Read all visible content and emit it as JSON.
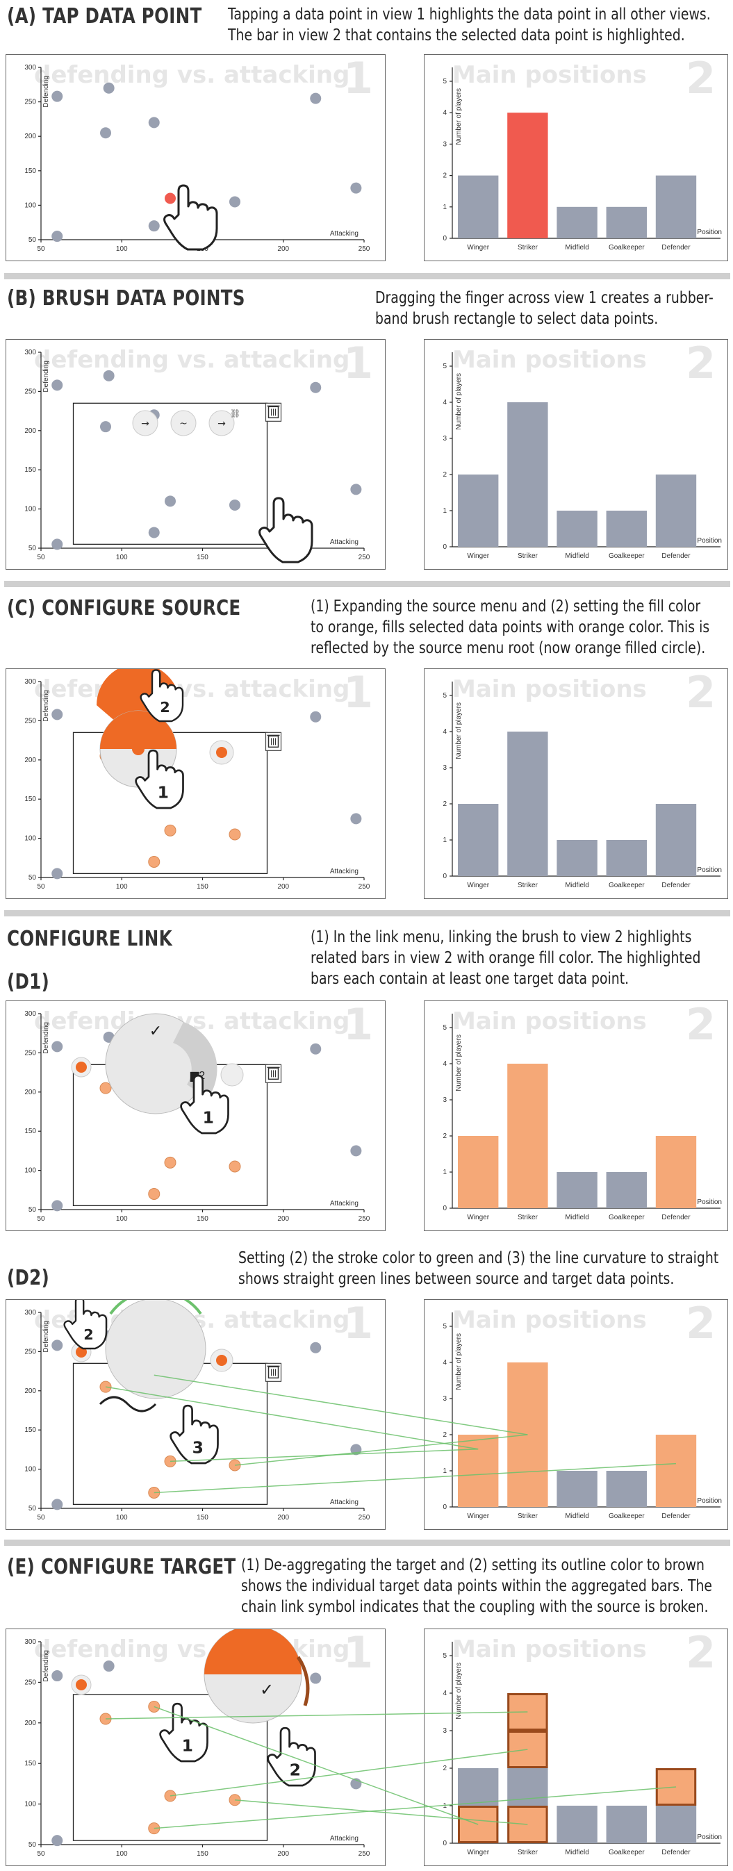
{
  "sections": [
    {
      "id": "a",
      "title": "(A) TAP DATA POINT",
      "desc": [
        "Tapping a data point in view 1 highlights the data point in all other views.",
        "The bar in view 2 that contains the selected data point is highlighted."
      ]
    },
    {
      "id": "b",
      "title": "(B) BRUSH DATA POINTS",
      "desc": [
        "Dragging the finger across view 1 creates a rubber-",
        "band brush rectangle to select data points."
      ]
    },
    {
      "id": "c",
      "title": "(C) CONFIGURE SOURCE",
      "desc": [
        "(1) Expanding the source menu and (2) setting the fill color",
        "to orange, fills selected data points with orange color. This is",
        "reflected by the source menu root (now orange filled circle)."
      ]
    },
    {
      "id": "d",
      "title": "CONFIGURE LINK",
      "subtitle": "(D1)",
      "desc": [
        "(1) In the link menu, linking the brush to view 2 highlights",
        "related bars in view 2 with orange fill color. The highlighted",
        "bars each contain at least one target data point."
      ]
    },
    {
      "id": "d2",
      "subtitle": "(D2)",
      "desc": [
        "Setting (2) the stroke color to green and (3) the line curvature to straight",
        "shows straight green lines between source and target data points."
      ]
    },
    {
      "id": "e",
      "title": "(E) CONFIGURE TARGET",
      "desc": [
        "(1) De-aggregating the target and (2) setting its outline color to brown",
        "shows the individual target data points within the aggregated bars. The",
        "chain link symbol indicates that the coupling with the source is broken."
      ]
    }
  ],
  "view1": {
    "watermark": "defending vs. attacking",
    "watermark_short": "defend",
    "number": "1",
    "xlabel": "Attacking",
    "ylabel": "Defending",
    "xticks": [
      "50",
      "100",
      "150",
      "200",
      "250"
    ],
    "yticks": [
      "50",
      "100",
      "150",
      "200",
      "250",
      "300"
    ]
  },
  "view2": {
    "watermark": "Main positions",
    "number": "2",
    "xlabel": "Position",
    "ylabel": "Number of players",
    "yticks": [
      "0",
      "1",
      "2",
      "3",
      "4",
      "5"
    ]
  },
  "chart_data": [
    {
      "type": "scatter",
      "title": "defending vs. attacking",
      "xlabel": "Attacking",
      "ylabel": "Defending",
      "xlim": [
        50,
        250
      ],
      "ylim": [
        50,
        300
      ],
      "points": [
        {
          "x": 60,
          "y": 55
        },
        {
          "x": 60,
          "y": 258
        },
        {
          "x": 90,
          "y": 205
        },
        {
          "x": 92,
          "y": 270
        },
        {
          "x": 120,
          "y": 220
        },
        {
          "x": 120,
          "y": 70
        },
        {
          "x": 130,
          "y": 110
        },
        {
          "x": 170,
          "y": 105
        },
        {
          "x": 220,
          "y": 255
        },
        {
          "x": 245,
          "y": 125
        }
      ]
    },
    {
      "type": "bar",
      "title": "Main positions",
      "xlabel": "Position",
      "ylabel": "Number of players",
      "ylim": [
        0,
        5
      ],
      "categories": [
        "Winger",
        "Striker",
        "Midfield",
        "Goalkeeper",
        "Defender"
      ],
      "values": [
        2,
        4,
        1,
        1,
        2
      ]
    }
  ],
  "colors": {
    "point": "#99a0b0",
    "bar": "#99a0b0",
    "selected": "#f05a4f",
    "orange": "#ee6a25",
    "orange_light": "#f5a877",
    "green": "#6cc16c",
    "brown": "#9a4a1c"
  },
  "icons": [
    "hand-pointer-icon",
    "trash-icon",
    "link-icon",
    "arrow-icon",
    "curve-icon",
    "check-icon",
    "bar-chart-icon"
  ]
}
